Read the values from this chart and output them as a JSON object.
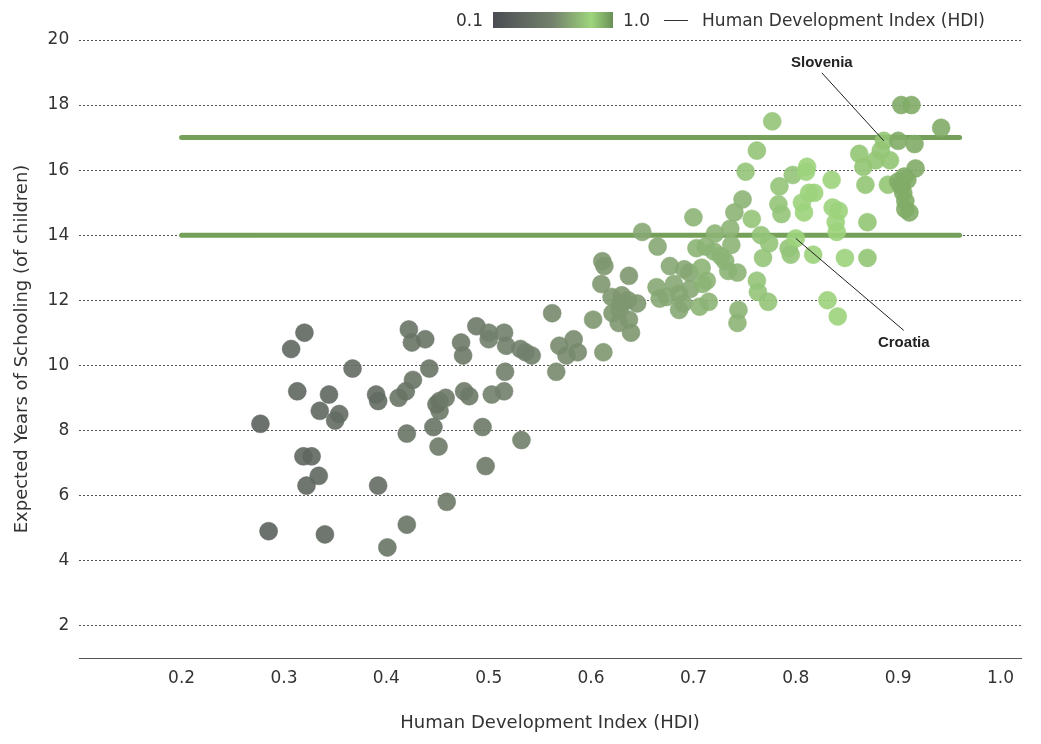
{
  "chart_data": {
    "type": "scatter",
    "xlabel": "Human Development Index (HDI)",
    "ylabel": "Expected Years of Schooling (of children)",
    "xlim": [
      0.1,
      1.02
    ],
    "xticks": [
      0.2,
      0.3,
      0.4,
      0.5,
      0.6,
      0.7,
      0.8,
      0.9,
      {
        "value": 1.0,
        "label": "1.0"
      }
    ],
    "ylim": [
      1,
      20
    ],
    "yticks": [
      2,
      4,
      6,
      8,
      10,
      12,
      14,
      16,
      18,
      20
    ],
    "grid": "y",
    "marker": "circle",
    "annotations": [
      "0.1",
      "1.0",
      "Human Development Index (HDI)",
      {
        "text": "Slovenia",
        "x": 0.886,
        "y": 16.9
      },
      {
        "text": "Croatia",
        "x": 0.8,
        "y": 13.9
      }
    ],
    "series": [
      {
        "type": "scatter",
        "x": [
          0.277,
          0.285,
          0.307,
          0.32,
          0.313,
          0.319,
          0.327,
          0.322,
          0.334,
          0.335,
          0.344,
          0.35,
          0.354,
          0.34,
          0.367,
          0.39,
          0.392,
          0.392,
          0.401,
          0.422,
          0.425,
          0.438,
          0.412,
          0.419,
          0.426,
          0.442,
          0.42,
          0.42,
          0.452,
          0.452,
          0.449,
          0.458,
          0.446,
          0.451,
          0.459,
          0.473,
          0.475,
          0.476,
          0.481,
          0.488,
          0.5,
          0.5,
          0.515,
          0.517,
          0.516,
          0.515,
          0.494,
          0.497,
          0.503,
          0.531,
          0.536,
          0.542,
          0.532,
          0.562,
          0.566,
          0.569,
          0.576,
          0.583,
          0.587,
          0.602,
          0.612,
          0.611,
          0.613,
          0.61,
          0.62,
          0.621,
          0.627,
          0.629,
          0.63,
          0.628,
          0.636,
          0.637,
          0.639,
          0.637,
          0.65,
          0.645,
          0.665,
          0.664,
          0.667,
          0.674,
          0.677,
          0.681,
          0.686,
          0.686,
          0.69,
          0.691,
          0.696,
          0.697,
          0.7,
          0.703,
          0.706,
          0.709,
          0.713,
          0.715,
          0.708,
          0.712,
          0.72,
          0.721,
          0.727,
          0.731,
          0.734,
          0.736,
          0.737,
          0.74,
          0.743,
          0.744,
          0.743,
          0.748,
          0.751,
          0.757,
          0.762,
          0.763,
          0.762,
          0.766,
          0.768,
          0.773,
          0.774,
          0.777,
          0.784,
          0.783,
          0.786,
          0.793,
          0.797,
          0.8,
          0.795,
          0.806,
          0.81,
          0.811,
          0.813,
          0.808,
          0.817,
          0.818,
          0.831,
          0.835,
          0.836,
          0.839,
          0.842,
          0.84,
          0.841,
          0.848,
          0.862,
          0.866,
          0.868,
          0.87,
          0.87,
          0.878,
          0.883,
          0.886,
          0.892,
          0.89,
          0.9,
          0.903,
          0.913,
          0.916,
          0.917,
          0.9,
          0.903,
          0.905,
          0.906,
          0.909,
          0.907,
          0.907,
          0.911,
          0.942
        ],
        "values": [
          8.2,
          4.9,
          10.5,
          11.0,
          9.2,
          7.2,
          7.2,
          6.3,
          6.6,
          8.6,
          9.1,
          8.3,
          8.5,
          4.8,
          9.9,
          9.1,
          8.9,
          6.3,
          4.4,
          11.1,
          10.7,
          10.8,
          9.0,
          9.2,
          9.55,
          9.9,
          7.9,
          5.1,
          8.9,
          8.6,
          8.8,
          9.0,
          8.1,
          7.5,
          5.8,
          10.7,
          10.3,
          9.2,
          9.05,
          11.2,
          11.0,
          10.8,
          11.0,
          10.6,
          9.8,
          9.2,
          8.1,
          6.9,
          9.1,
          10.5,
          10.4,
          10.3,
          7.7,
          11.6,
          9.8,
          10.6,
          10.3,
          10.8,
          10.4,
          11.4,
          10.4,
          13.2,
          13.05,
          12.5,
          12.1,
          11.6,
          11.3,
          11.9,
          12.15,
          11.7,
          12.0,
          11.4,
          11.0,
          12.75,
          14.1,
          11.9,
          13.65,
          12.4,
          12.05,
          12.1,
          13.05,
          12.5,
          12.2,
          11.7,
          11.9,
          12.95,
          12.85,
          12.35,
          14.55,
          13.6,
          11.8,
          12.5,
          12.6,
          11.95,
          13.0,
          13.65,
          13.5,
          14.05,
          13.35,
          13.2,
          12.9,
          14.2,
          13.7,
          14.7,
          11.3,
          11.7,
          12.85,
          15.1,
          15.95,
          14.5,
          12.6,
          12.25,
          16.6,
          14.0,
          13.3,
          11.95,
          13.75,
          17.5,
          15.5,
          14.95,
          14.65,
          13.6,
          15.85,
          13.9,
          13.4,
          15.0,
          15.95,
          16.1,
          15.3,
          14.7,
          13.4,
          15.3,
          12.0,
          15.7,
          14.85,
          14.4,
          14.75,
          14.1,
          11.5,
          13.3,
          16.5,
          16.1,
          15.55,
          14.4,
          13.3,
          16.3,
          16.6,
          16.9,
          16.3,
          15.55,
          16.9,
          18.0,
          18.0,
          16.8,
          16.05,
          15.65,
          15.5,
          15.3,
          15.8,
          15.7,
          15.05,
          14.8,
          14.7,
          17.3
        ],
        "colors": [
          "#5b625d",
          "#5b625d",
          "#5f6760",
          "#5f6760",
          "#5f6760",
          "#5f6760",
          "#5f6760",
          "#5f6760",
          "#5f6760",
          "#5f6760",
          "#5f6760",
          "#636c62",
          "#636c62",
          "#5f6760",
          "#636c62",
          "#636c62",
          "#636c62",
          "#636c62",
          "#687365",
          "#687365",
          "#687365",
          "#687365",
          "#687365",
          "#687365",
          "#687365",
          "#687365",
          "#687365",
          "#687365",
          "#6d7968",
          "#6d7968",
          "#687365",
          "#6d7968",
          "#687365",
          "#6d7968",
          "#6d7968",
          "#6d7968",
          "#6d7968",
          "#6d7968",
          "#6d7968",
          "#6d7968",
          "#717f6b",
          "#717f6b",
          "#717f6b",
          "#717f6b",
          "#717f6b",
          "#717f6b",
          "#6d7968",
          "#6d7968",
          "#717f6b",
          "#717f6b",
          "#717f6b",
          "#717f6b",
          "#717f6b",
          "#77896d",
          "#77896d",
          "#77896d",
          "#77896d",
          "#77896d",
          "#77896d",
          "#7e9770",
          "#7e9770",
          "#7e9770",
          "#7e9770",
          "#7e9770",
          "#7e9770",
          "#7e9770",
          "#7e9770",
          "#7e9770",
          "#7e9770",
          "#7e9770",
          "#7e9770",
          "#7e9770",
          "#7e9770",
          "#7e9770",
          "#86a773",
          "#7e9770",
          "#86a773",
          "#86a773",
          "#86a773",
          "#86a773",
          "#86a773",
          "#86a773",
          "#86a773",
          "#86a773",
          "#86a773",
          "#86a773",
          "#86a773",
          "#86a773",
          "#8cb476",
          "#8cb476",
          "#8cb476",
          "#8cb476",
          "#8cb476",
          "#8cb476",
          "#8cb476",
          "#8cb476",
          "#8cb476",
          "#8cb476",
          "#8cb476",
          "#8cb476",
          "#8cb476",
          "#8cb476",
          "#8cb476",
          "#8cb476",
          "#8cb476",
          "#8cb476",
          "#8cb476",
          "#8cb476",
          "#94c479",
          "#94c479",
          "#94c479",
          "#94c479",
          "#94c479",
          "#94c479",
          "#94c479",
          "#94c479",
          "#94c479",
          "#94c479",
          "#94c479",
          "#94c479",
          "#94c479",
          "#94c479",
          "#94c479",
          "#9cd37b",
          "#94c479",
          "#9cd37b",
          "#9cd37b",
          "#9cd37b",
          "#9cd37b",
          "#9cd37b",
          "#9cd37b",
          "#9cd37b",
          "#9cd37b",
          "#9cd37b",
          "#9cd37b",
          "#9cd37b",
          "#9cd37b",
          "#9cd37b",
          "#9cd37b",
          "#9cd37b",
          "#93c574",
          "#93c574",
          "#93c574",
          "#93c574",
          "#93c574",
          "#93c574",
          "#93c574",
          "#93c574",
          "#93c574",
          "#93c574",
          "#81ac67",
          "#81ac67",
          "#81ac67",
          "#81ac67",
          "#81ac67",
          "#81ac67",
          "#81ac67",
          "#81ac67",
          "#81ac67",
          "#81ac67",
          "#81ac67",
          "#81ac67",
          "#81ac67",
          "#81ac67"
        ]
      },
      {
        "type": "line",
        "marker": "none",
        "color": "#74a05a",
        "x": [
          0.2,
          0.96
        ],
        "values": [
          17,
          17
        ]
      },
      {
        "type": "line",
        "marker": "none",
        "color": "#74a05a",
        "x": [
          0.2,
          0.96
        ],
        "values": [
          14,
          14
        ]
      }
    ]
  }
}
